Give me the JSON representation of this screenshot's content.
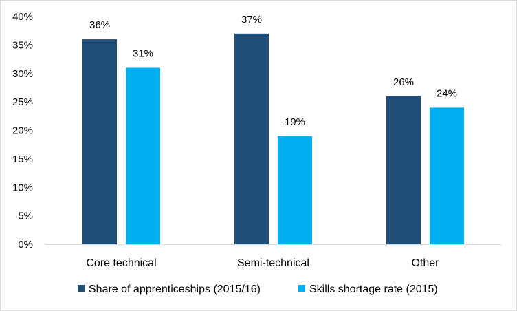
{
  "chart_data": {
    "type": "bar",
    "categories": [
      "Core technical",
      "Semi-technical",
      "Other"
    ],
    "series": [
      {
        "name": "Share of apprenticeships (2015/16)",
        "values": [
          36,
          37,
          26
        ],
        "labels": [
          "36%",
          "37%",
          "26%"
        ],
        "color": "#1f4e79"
      },
      {
        "name": "Skills shortage rate (2015)",
        "values": [
          31,
          19,
          24
        ],
        "labels": [
          "31%",
          "19%",
          "24%"
        ],
        "color": "#00b0f0"
      }
    ],
    "ylim": [
      0,
      40
    ],
    "yticks": [
      {
        "value": 0,
        "label": "0%"
      },
      {
        "value": 5,
        "label": "5%"
      },
      {
        "value": 10,
        "label": "10%"
      },
      {
        "value": 15,
        "label": "15%"
      },
      {
        "value": 20,
        "label": "20%"
      },
      {
        "value": 25,
        "label": "25%"
      },
      {
        "value": 30,
        "label": "30%"
      },
      {
        "value": 35,
        "label": "35%"
      },
      {
        "value": 40,
        "label": "40%"
      }
    ],
    "grid": false,
    "legend": "bottom"
  }
}
